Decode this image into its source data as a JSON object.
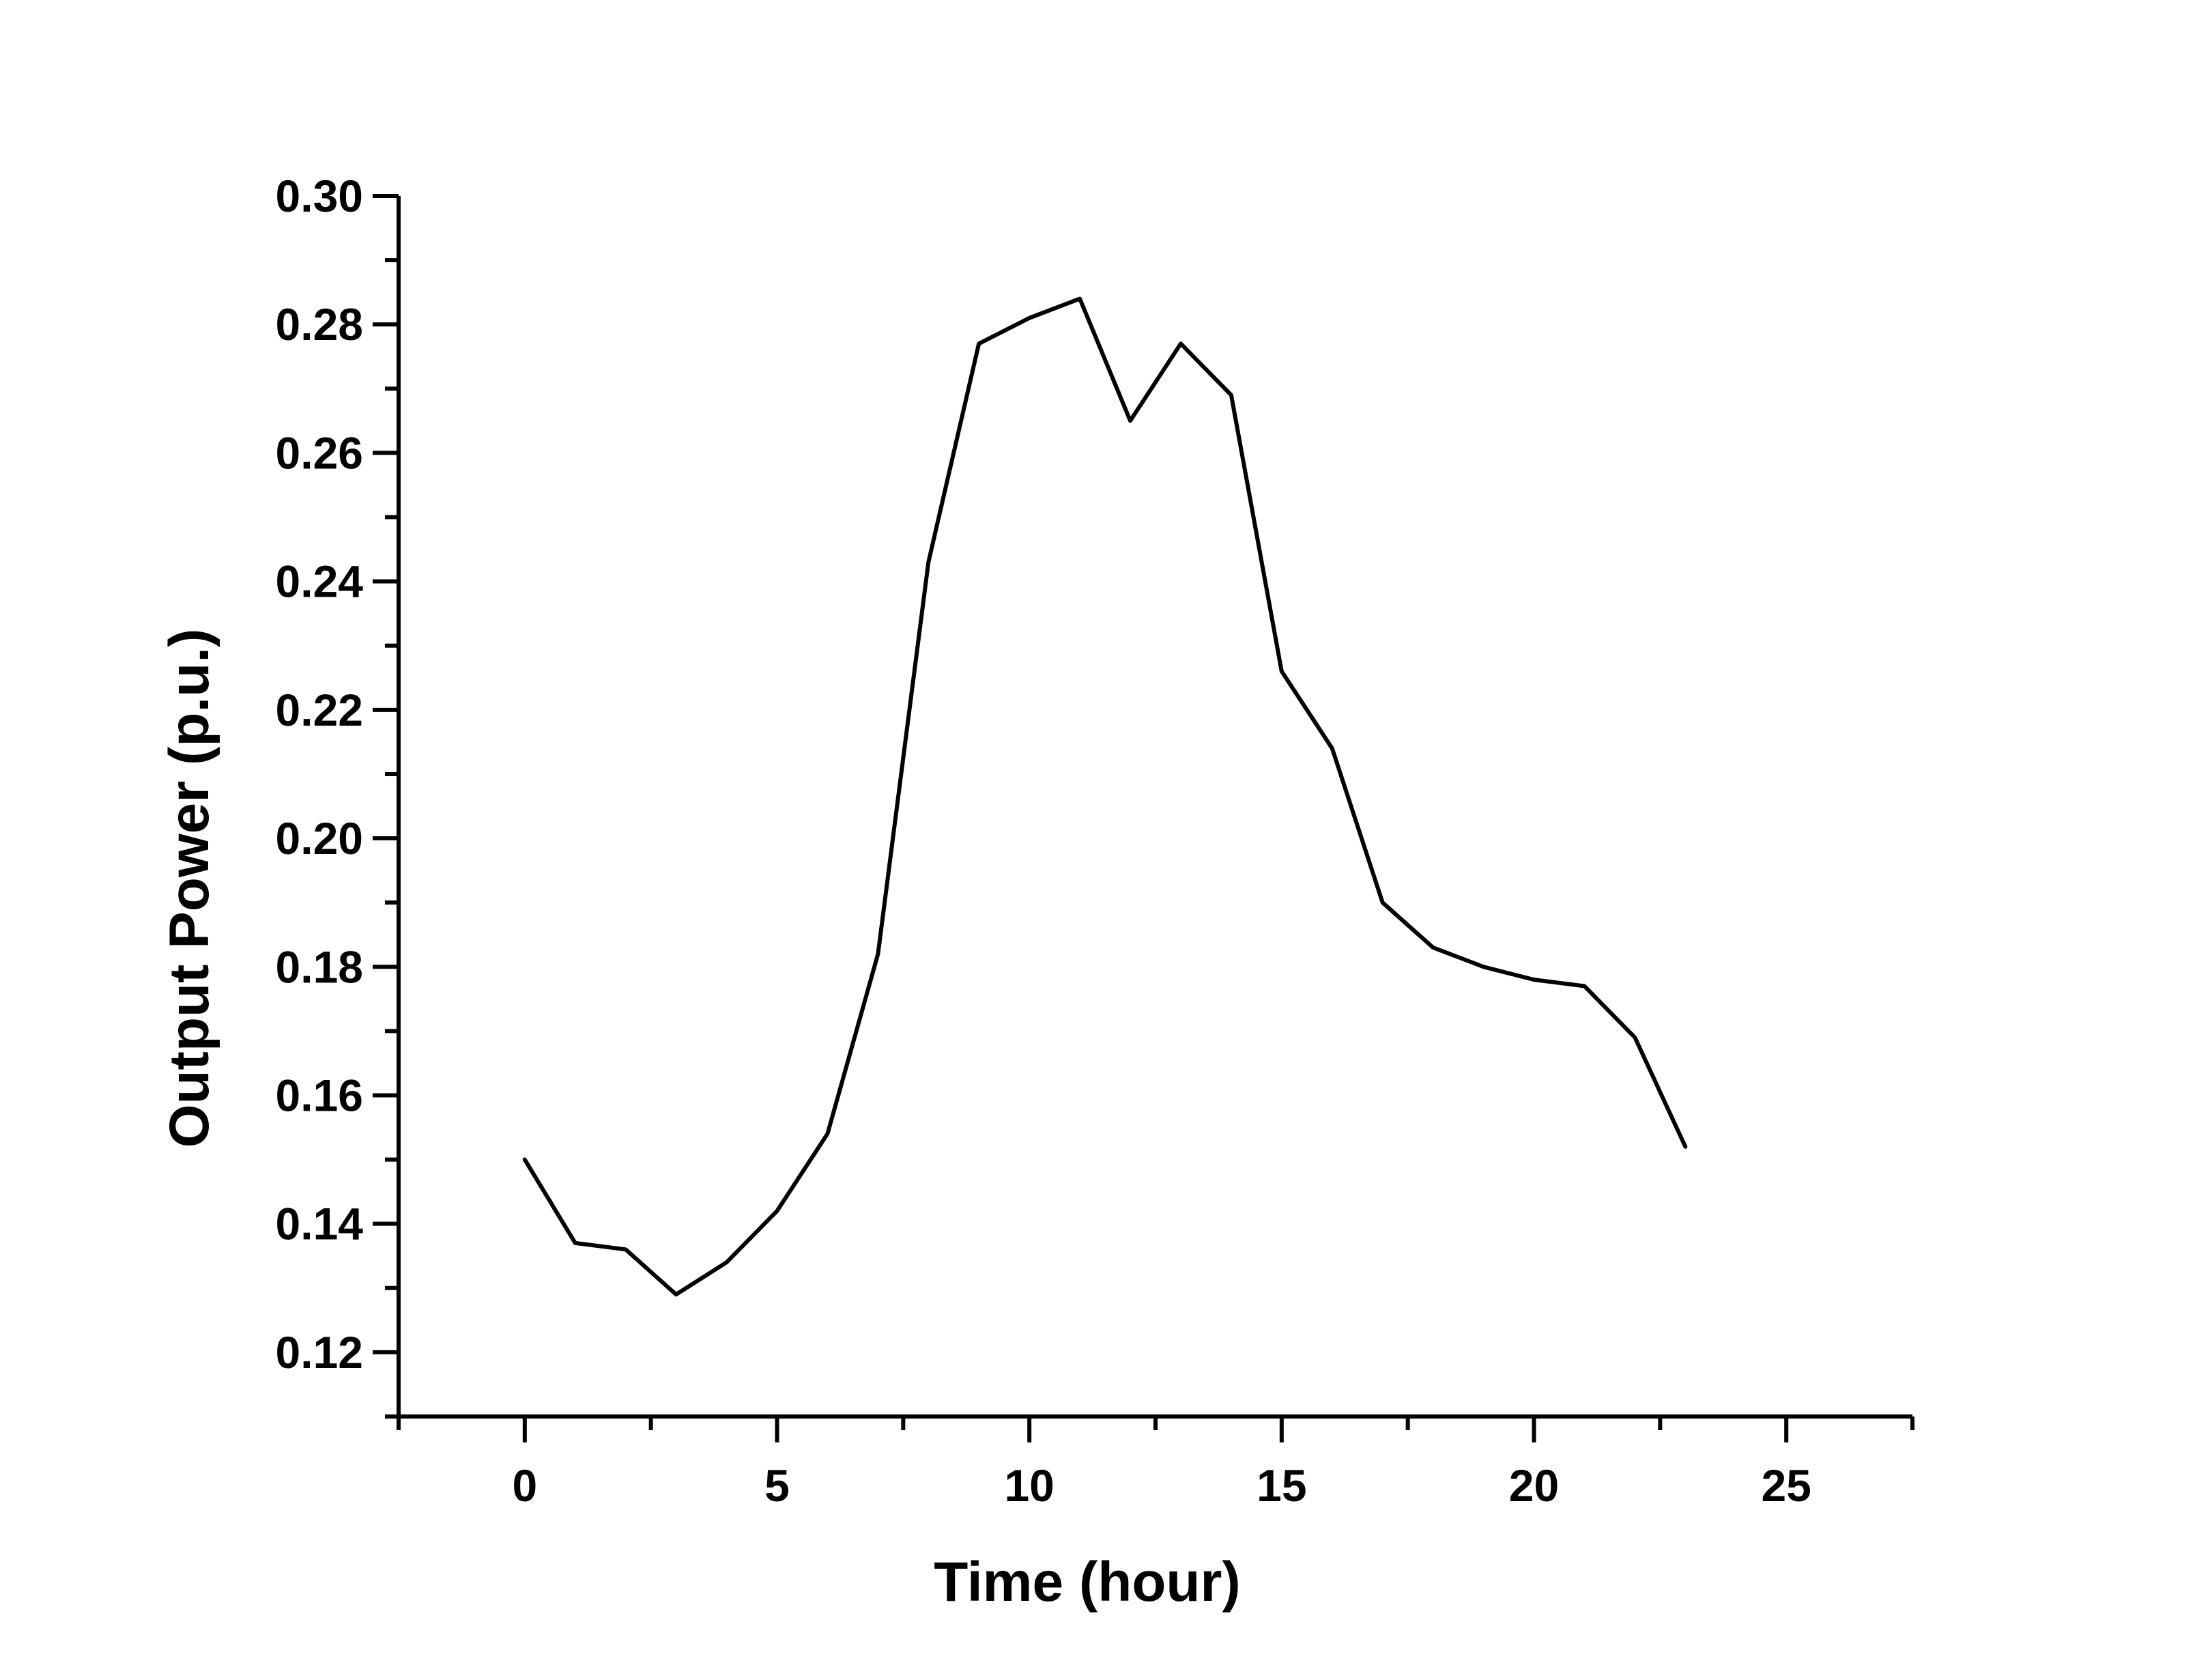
{
  "chart_data": {
    "type": "line",
    "title": "",
    "xlabel": "Time (hour)",
    "ylabel": "Output Power (p.u.)",
    "xlim": [
      -2.5,
      27.5
    ],
    "ylim": [
      0.11,
      0.3
    ],
    "x_ticks": [
      0,
      5,
      10,
      15,
      20,
      25
    ],
    "x_tick_labels": [
      "0",
      "5",
      "10",
      "15",
      "20",
      "25"
    ],
    "y_ticks": [
      0.12,
      0.14,
      0.16,
      0.18,
      0.2,
      0.22,
      0.24,
      0.26,
      0.28,
      0.3
    ],
    "y_tick_labels": [
      "0.12",
      "0.14",
      "0.16",
      "0.18",
      "0.20",
      "0.22",
      "0.24",
      "0.26",
      "0.28",
      "0.30"
    ],
    "grid": false,
    "series_color": "#000000",
    "series": [
      {
        "x": [
          0,
          1,
          2,
          3,
          4,
          5,
          6,
          7,
          8,
          9,
          10,
          11,
          12,
          13,
          14,
          15,
          16,
          17,
          18,
          19,
          20,
          21,
          22,
          23
        ],
        "values": [
          0.15,
          0.137,
          0.136,
          0.129,
          0.134,
          0.142,
          0.154,
          0.182,
          0.243,
          0.277,
          0.281,
          0.284,
          0.265,
          0.277,
          0.269,
          0.226,
          0.214,
          0.19,
          0.183,
          0.18,
          0.178,
          0.177,
          0.169,
          0.152
        ]
      }
    ]
  }
}
